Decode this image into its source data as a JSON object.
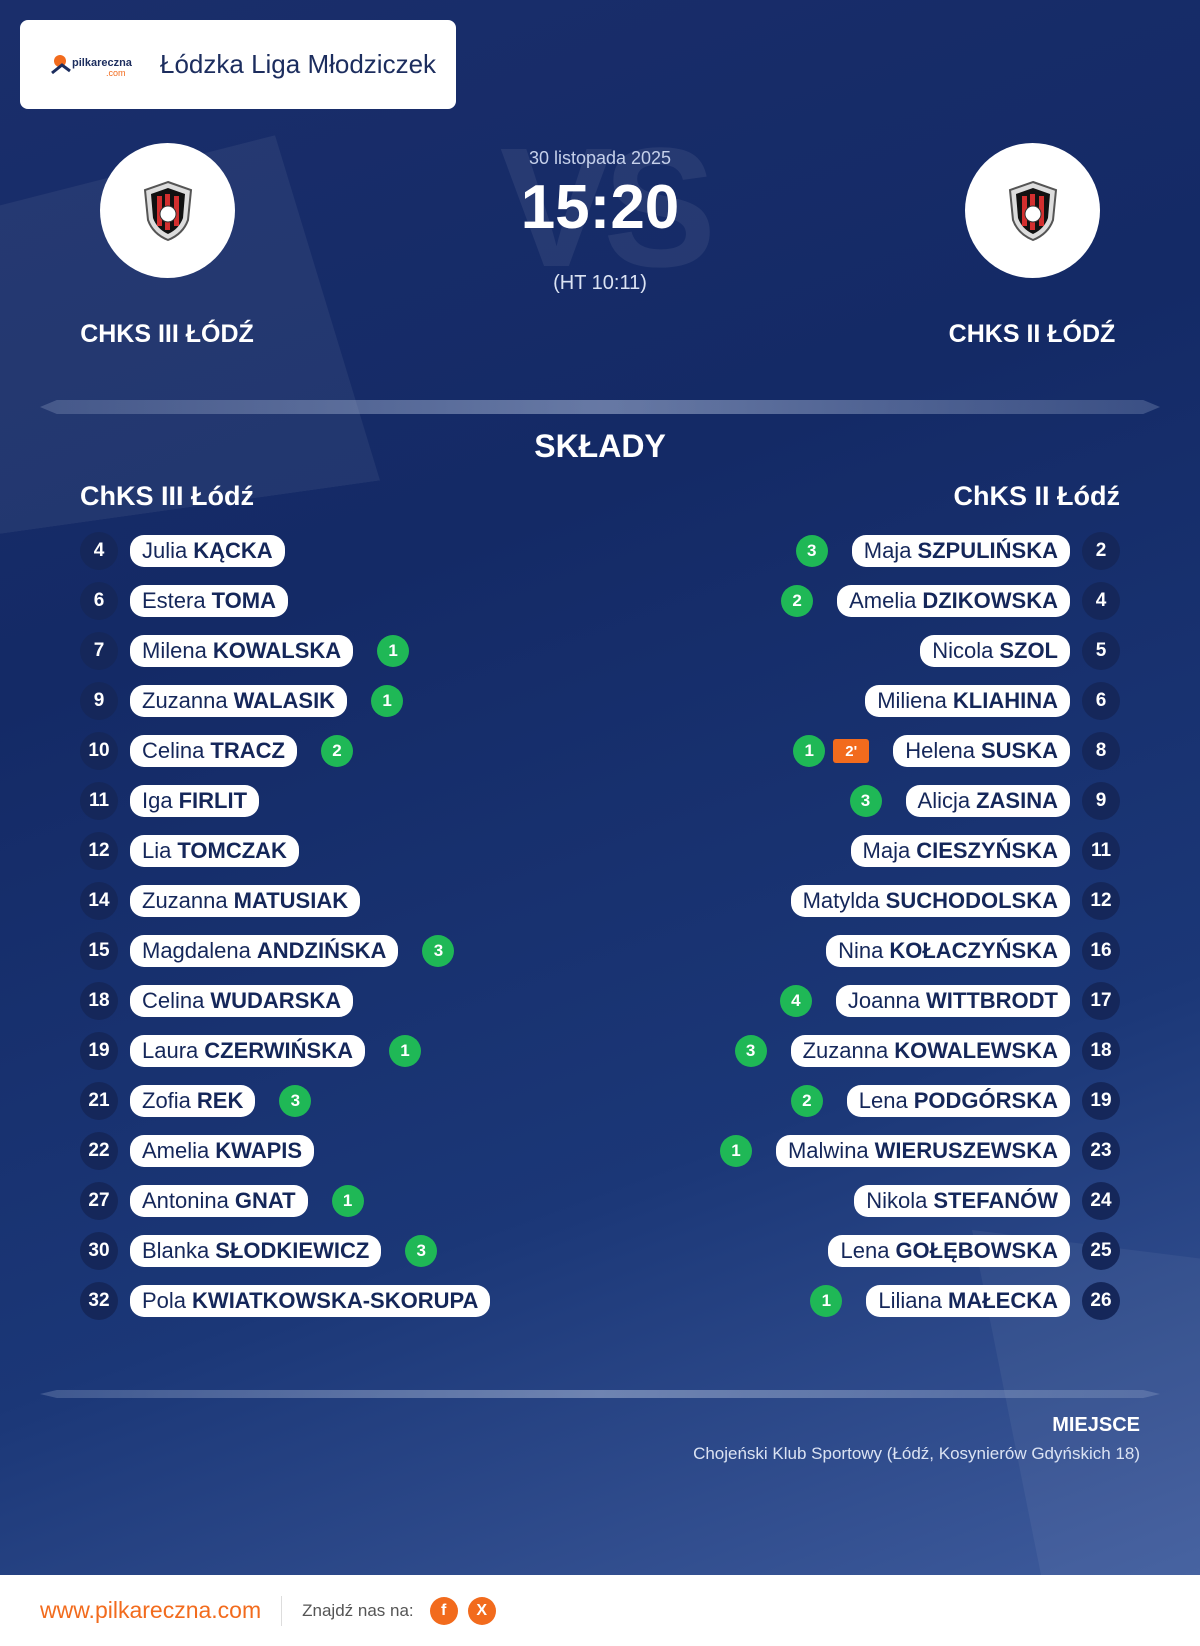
{
  "league": {
    "logo_text": "pilkareczna",
    "logo_subtext": ".com",
    "name": "Łódzka Liga Młodziczek"
  },
  "match": {
    "date": "30 listopada 2025",
    "score": "15:20",
    "halftime": "(HT 10:11)",
    "vs_watermark": "VS"
  },
  "home_team": {
    "name_upper": "CHKS III ŁÓDŹ",
    "name": "ChKS III Łódź",
    "crest_icon": "club-crest-icon"
  },
  "away_team": {
    "name_upper": "CHKS II ŁÓDŹ",
    "name": "ChKS II Łódź",
    "crest_icon": "club-crest-icon"
  },
  "squads_title": "SKŁADY",
  "home_players": [
    {
      "number": "4",
      "first": "Julia",
      "last": "KĄCKA",
      "goals": ""
    },
    {
      "number": "6",
      "first": "Estera",
      "last": "TOMA",
      "goals": ""
    },
    {
      "number": "7",
      "first": "Milena",
      "last": "KOWALSKA",
      "goals": "1"
    },
    {
      "number": "9",
      "first": "Zuzanna",
      "last": "WALASIK",
      "goals": "1"
    },
    {
      "number": "10",
      "first": "Celina",
      "last": "TRACZ",
      "goals": "2"
    },
    {
      "number": "11",
      "first": "Iga",
      "last": "FIRLIT",
      "goals": ""
    },
    {
      "number": "12",
      "first": "Lia",
      "last": "TOMCZAK",
      "goals": ""
    },
    {
      "number": "14",
      "first": "Zuzanna",
      "last": "MATUSIAK",
      "goals": ""
    },
    {
      "number": "15",
      "first": "Magdalena",
      "last": "ANDZIŃSKA",
      "goals": "3"
    },
    {
      "number": "18",
      "first": "Celina",
      "last": "WUDARSKA",
      "goals": ""
    },
    {
      "number": "19",
      "first": "Laura",
      "last": "CZERWIŃSKA",
      "goals": "1"
    },
    {
      "number": "21",
      "first": "Zofia",
      "last": "REK",
      "goals": "3"
    },
    {
      "number": "22",
      "first": "Amelia",
      "last": "KWAPIS",
      "goals": ""
    },
    {
      "number": "27",
      "first": "Antonina",
      "last": "GNAT",
      "goals": "1"
    },
    {
      "number": "30",
      "first": "Blanka",
      "last": "SŁODKIEWICZ",
      "goals": "3"
    },
    {
      "number": "32",
      "first": "Pola",
      "last": "KWIATKOWSKA-SKORUPA",
      "goals": ""
    }
  ],
  "away_players": [
    {
      "number": "2",
      "first": "Maja",
      "last": "SZPULIŃSKA",
      "goals": "3",
      "suspension": ""
    },
    {
      "number": "4",
      "first": "Amelia",
      "last": "DZIKOWSKA",
      "goals": "2",
      "suspension": ""
    },
    {
      "number": "5",
      "first": "Nicola",
      "last": "SZOL",
      "goals": "",
      "suspension": ""
    },
    {
      "number": "6",
      "first": "Miliena",
      "last": "KLIAHINA",
      "goals": "",
      "suspension": ""
    },
    {
      "number": "8",
      "first": "Helena",
      "last": "SUSKA",
      "goals": "1",
      "suspension": "2'"
    },
    {
      "number": "9",
      "first": "Alicja",
      "last": "ZASINA",
      "goals": "3",
      "suspension": ""
    },
    {
      "number": "11",
      "first": "Maja",
      "last": "CIESZYŃSKA",
      "goals": "",
      "suspension": ""
    },
    {
      "number": "12",
      "first": "Matylda",
      "last": "SUCHODOLSKA",
      "goals": "",
      "suspension": ""
    },
    {
      "number": "16",
      "first": "Nina",
      "last": "KOŁACZYŃSKA",
      "goals": "",
      "suspension": ""
    },
    {
      "number": "17",
      "first": "Joanna",
      "last": "WITTBRODT",
      "goals": "4",
      "suspension": ""
    },
    {
      "number": "18",
      "first": "Zuzanna",
      "last": "KOWALEWSKA",
      "goals": "3",
      "suspension": ""
    },
    {
      "number": "19",
      "first": "Lena",
      "last": "PODGÓRSKA",
      "goals": "2",
      "suspension": ""
    },
    {
      "number": "23",
      "first": "Malwina",
      "last": "WIERUSZEWSKA",
      "goals": "1",
      "suspension": ""
    },
    {
      "number": "24",
      "first": "Nikola",
      "last": "STEFANÓW",
      "goals": "",
      "suspension": ""
    },
    {
      "number": "25",
      "first": "Lena",
      "last": "GOŁĘBOWSKA",
      "goals": "",
      "suspension": ""
    },
    {
      "number": "26",
      "first": "Liliana",
      "last": "MAŁECKA",
      "goals": "1",
      "suspension": ""
    }
  ],
  "venue": {
    "label": "MIEJSCE",
    "text": "Chojeński Klub Sportowy (Łódź, Kosynierów Gdyńskich 18)"
  },
  "footer": {
    "site": "www.pilkareczna.com",
    "find_us": "Znajdź nas na:",
    "socials": [
      {
        "icon": "facebook-icon",
        "glyph": "f"
      },
      {
        "icon": "x-icon",
        "glyph": "X"
      }
    ]
  },
  "colors": {
    "background": "#1a2e6b",
    "goal_badge": "#1fb856",
    "suspension_badge": "#f26b1d",
    "accent": "#f26b1d",
    "number_badge": "#15275a"
  }
}
